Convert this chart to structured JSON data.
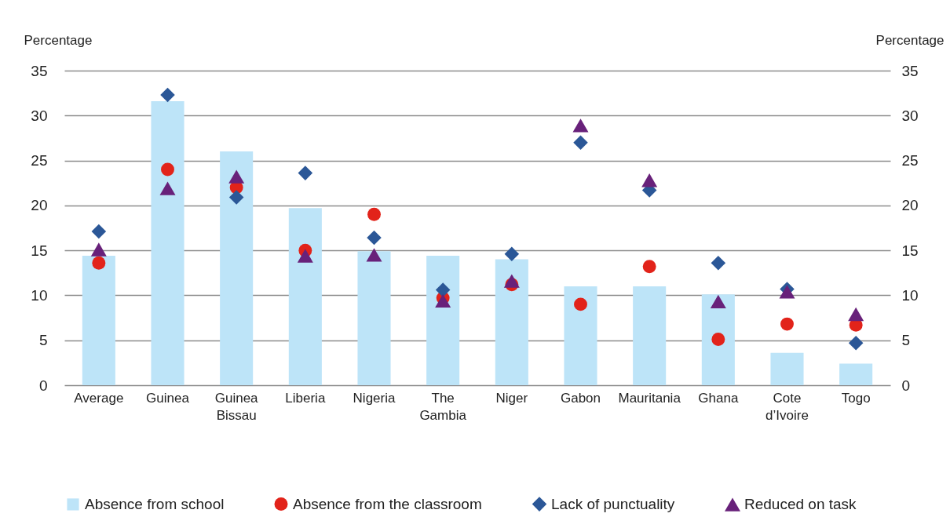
{
  "chart_data": {
    "type": "bar",
    "categories": [
      "Average",
      "Guinea",
      "Guinea Bissau",
      "Liberia",
      "Nigeria",
      "The Gambia",
      "Niger",
      "Gabon",
      "Mauritania",
      "Ghana",
      "Cote d’Ivoire",
      "Togo"
    ],
    "series": [
      {
        "name": "Absence from school",
        "color": "#bde4f8",
        "values": [
          14.4,
          31.6,
          26.0,
          19.7,
          14.9,
          14.4,
          14.0,
          11.0,
          11.0,
          10.1,
          3.6,
          2.4
        ]
      },
      {
        "name": "Absence from the classroom",
        "type": "scatter",
        "marker": "circle",
        "color": "#e2231a",
        "values": [
          13.6,
          24.0,
          22.0,
          15.0,
          19.0,
          9.7,
          11.2,
          9.0,
          13.2,
          5.1,
          6.8,
          6.7
        ]
      },
      {
        "name": "Lack of punctuality",
        "type": "scatter",
        "marker": "diamond",
        "color": "#2b5797",
        "values": [
          17.1,
          32.3,
          20.9,
          23.6,
          16.4,
          10.6,
          14.6,
          27.0,
          21.7,
          13.6,
          10.7,
          4.7
        ]
      },
      {
        "name": "Reduced on task",
        "type": "scatter",
        "marker": "triangle",
        "color": "#68217a",
        "values": [
          15.1,
          21.9,
          23.2,
          14.4,
          14.5,
          9.4,
          11.6,
          28.9,
          22.8,
          9.3,
          10.4,
          7.9
        ]
      }
    ],
    "ylabel": "Percentage",
    "y2label": "Percentage",
    "ylim": [
      0,
      35
    ],
    "yticks": [
      0,
      5,
      10,
      15,
      20,
      25,
      30,
      35
    ],
    "y2lim": [
      0,
      35
    ],
    "y2ticks": [
      0,
      5,
      10,
      15,
      20,
      25,
      30,
      35
    ],
    "grid": "y",
    "legend": "bottom"
  }
}
